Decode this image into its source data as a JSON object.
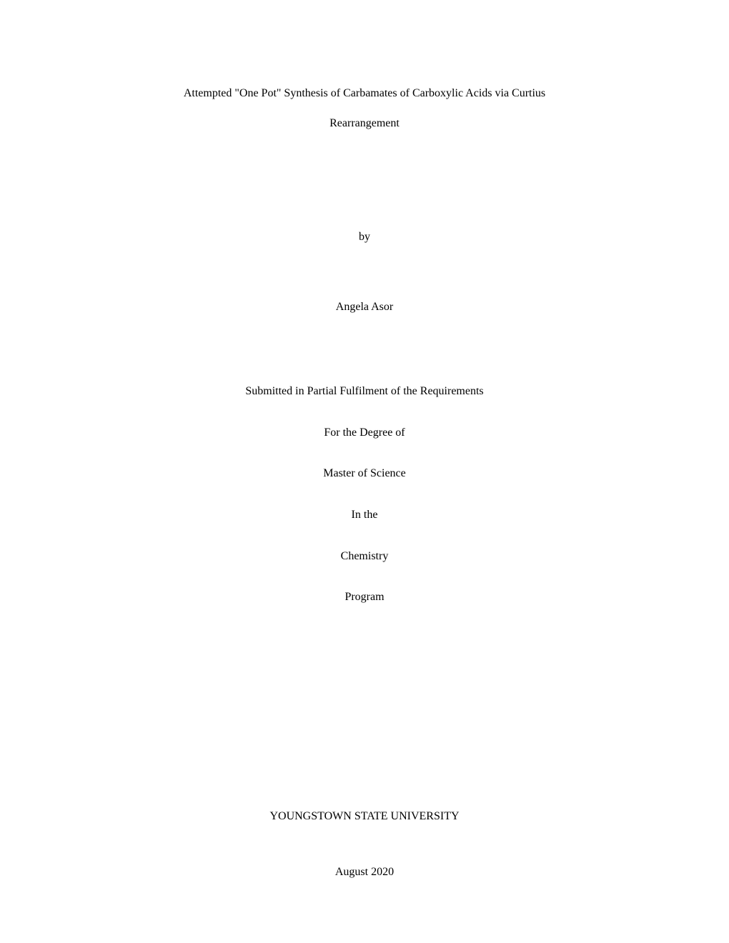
{
  "document": {
    "type": "thesis_title_page",
    "background_color": "#ffffff",
    "text_color": "#000000",
    "font_family": "Times New Roman",
    "base_fontsize": 16,
    "line_spacing": 2.6
  },
  "title": {
    "line1": "Attempted \"One Pot\" Synthesis of Carbamates of Carboxylic Acids via Curtius",
    "line2": "Rearrangement"
  },
  "by_label": "by",
  "author": "Angela Asor",
  "submission": {
    "line1": "Submitted in Partial Fulfilment of the Requirements",
    "line2": "For the Degree of",
    "line3": "Master of Science",
    "line4": "In the",
    "line5": "Chemistry",
    "line6": "Program"
  },
  "university": "YOUNGSTOWN STATE UNIVERSITY",
  "date": "August 2020"
}
